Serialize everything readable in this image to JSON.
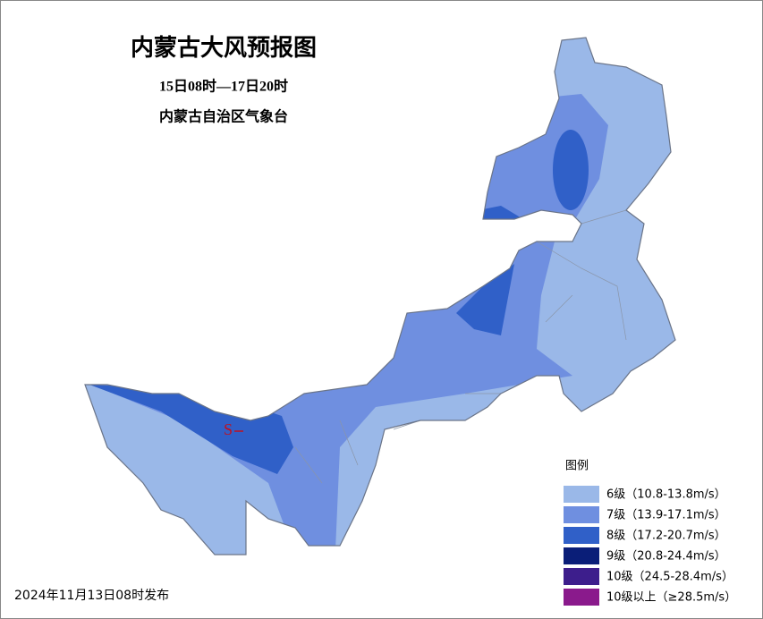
{
  "header": {
    "title": "内蒙古大风预报图",
    "subtitle": "15日08时—17日20时",
    "issuer": "内蒙古自治区气象台"
  },
  "marker": "S",
  "legend": {
    "title": "图例",
    "items": [
      {
        "label": "6级（10.8-13.8m/s）",
        "color": "#9ab8e8"
      },
      {
        "label": "7级（13.9-17.1m/s）",
        "color": "#6f8fe0"
      },
      {
        "label": "8级（17.2-20.7m/s）",
        "color": "#3060c8"
      },
      {
        "label": "9级（20.8-24.4m/s）",
        "color": "#0a1e78"
      },
      {
        "label": "10级（24.5-28.4m/s）",
        "color": "#3d1e8c"
      },
      {
        "label": "10级以上（≥28.5m/s）",
        "color": "#8a1a8c"
      }
    ]
  },
  "footer": {
    "date": "2024年11月13日08时发布"
  }
}
